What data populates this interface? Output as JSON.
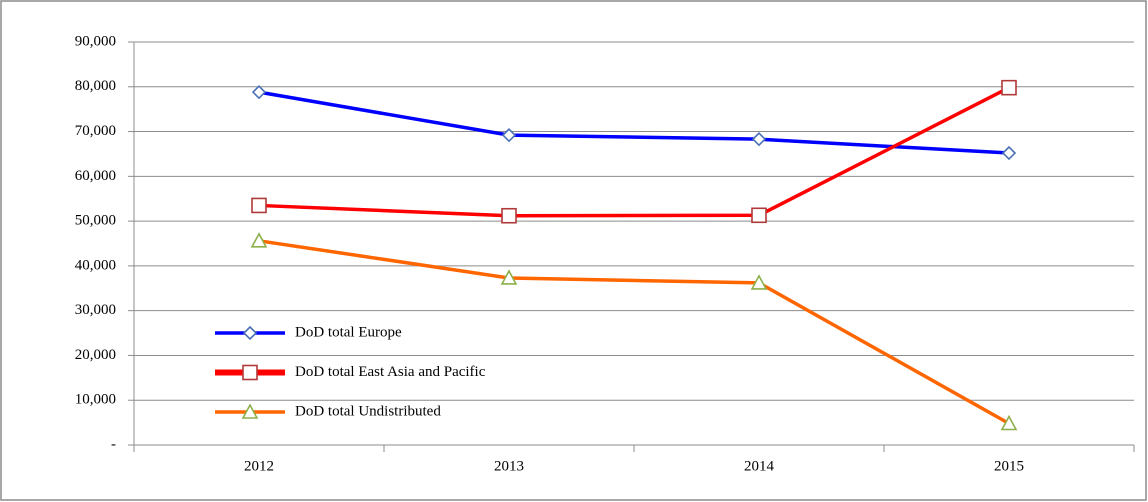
{
  "chart_data": {
    "type": "line",
    "categories": [
      "2012",
      "2013",
      "2014",
      "2015"
    ],
    "series": [
      {
        "name": "DoD total Europe",
        "color": "#0000ff",
        "marker": "diamond",
        "marker_color": "#4a6fb5",
        "values": [
          78800,
          69200,
          68300,
          65200
        ]
      },
      {
        "name": "DoD total East Asia and Pacific",
        "color": "#ff0000",
        "marker": "square",
        "marker_color": "#b03a3a",
        "values": [
          53500,
          51200,
          51300,
          79800
        ]
      },
      {
        "name": "DoD total Undistributed",
        "color": "#ff6600",
        "marker": "triangle",
        "marker_color": "#8db04a",
        "values": [
          45600,
          37300,
          36200,
          4800
        ]
      }
    ],
    "ylim": [
      0,
      90000
    ],
    "yticks": [
      {
        "value": 0,
        "label": "-"
      },
      {
        "value": 10000,
        "label": "10,000"
      },
      {
        "value": 20000,
        "label": "20,000"
      },
      {
        "value": 30000,
        "label": "30,000"
      },
      {
        "value": 40000,
        "label": "40,000"
      },
      {
        "value": 50000,
        "label": "50,000"
      },
      {
        "value": 60000,
        "label": "60,000"
      },
      {
        "value": 70000,
        "label": "70,000"
      },
      {
        "value": 80000,
        "label": "80,000"
      },
      {
        "value": 90000,
        "label": "90,000"
      }
    ],
    "grid": true
  }
}
